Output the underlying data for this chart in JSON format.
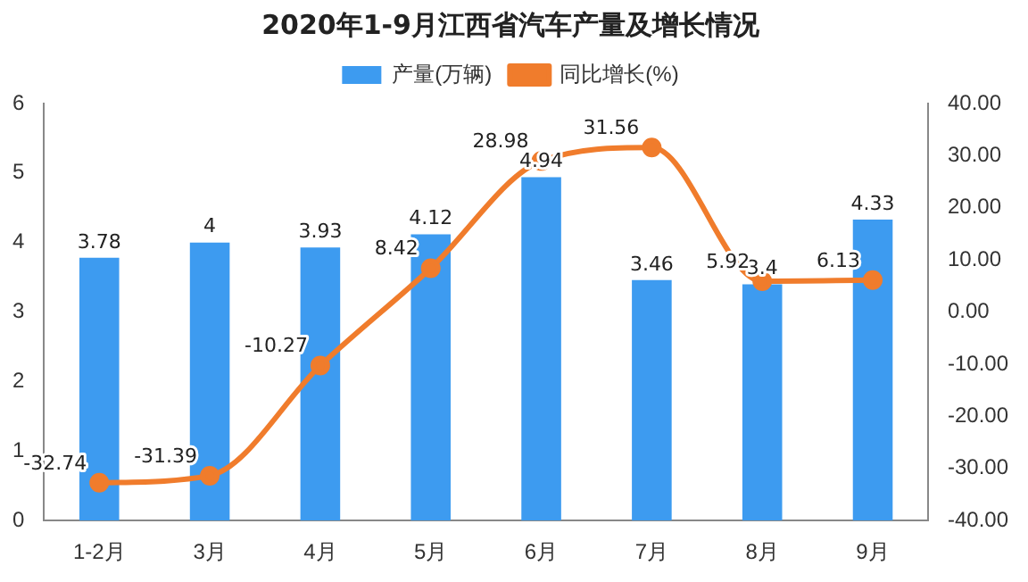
{
  "chart_data": {
    "type": "bar",
    "title": "2020年1-9月江西省汽车产量及增长情况",
    "categories": [
      "1-2月",
      "3月",
      "4月",
      "5月",
      "6月",
      "7月",
      "8月",
      "9月"
    ],
    "series": [
      {
        "name": "产量(万辆)",
        "color": "#3d9bf0",
        "values": [
          3.78,
          4,
          3.93,
          4.12,
          4.94,
          3.46,
          3.4,
          4.33
        ]
      },
      {
        "name": "同比增长(%)",
        "type": "line",
        "axis": "y2",
        "color": "#f07c2c",
        "marker": "circle",
        "values": [
          -32.74,
          -31.39,
          -10.27,
          8.42,
          28.98,
          31.56,
          5.92,
          6.13
        ]
      }
    ],
    "ylim": [
      0,
      6
    ],
    "yticks": [
      0,
      1,
      2,
      3,
      4,
      5,
      6
    ],
    "y2lim": [
      -40,
      40
    ],
    "y2ticks": [
      {
        "value": -40,
        "label": "-40.00"
      },
      {
        "value": -30,
        "label": "-30.00"
      },
      {
        "value": -20,
        "label": "-20.00"
      },
      {
        "value": -10,
        "label": "-10.00"
      },
      {
        "value": 0,
        "label": "0.00"
      },
      {
        "value": 10,
        "label": "10.00"
      },
      {
        "value": 20,
        "label": "20.00"
      },
      {
        "value": 30,
        "label": "30.00"
      },
      {
        "value": 40,
        "label": "40.00"
      }
    ],
    "data_labels": true,
    "legend": "top",
    "grid": false
  }
}
